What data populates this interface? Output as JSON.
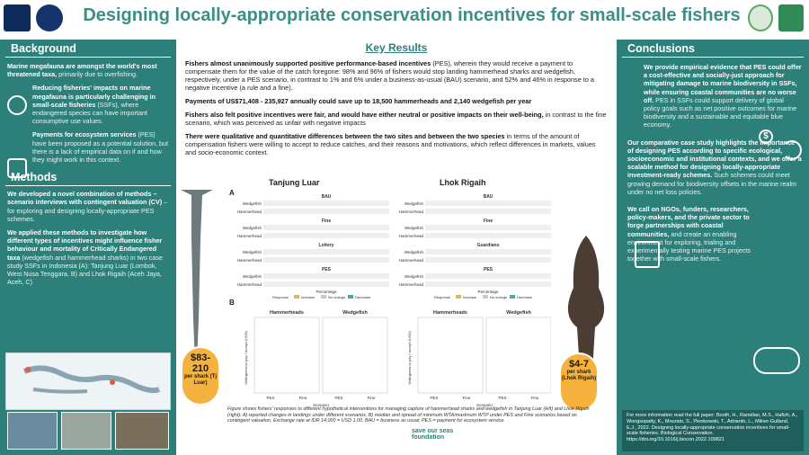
{
  "header": {
    "title": "Designing locally-appropriate conservation incentives for small-scale fishers",
    "logos": [
      "oxford-logo",
      "partner-seal-logo",
      "partner-emblem-logo",
      "university-logo"
    ]
  },
  "left": {
    "background_heading": "Background",
    "bg_p1_bold": "Marine megafauna are amongst the world's most threatened taxa,",
    "bg_p1_rest": " primarily due to overfishing.",
    "bg_p2_bold": "Reducing fisheries' impacts on marine megafauna is particularly challenging in small-scale fisheries",
    "bg_p2_rest": " (SSFs), where endangered species can have important consumptive use values.",
    "bg_p3_bold": "Payments for ecosystem services",
    "bg_p3_rest": " (PES) have been proposed as a potential solution, but there is a lack of empirical data on if and how they might work in this context.",
    "methods_heading": "Methods",
    "m_p1_bold": "We developed a novel combination of methods – scenario interviews with contingent valuation (CV)",
    "m_p1_rest": " – for exploring and designing locally-appropriate PES schemes.",
    "m_p2_bold": "We applied these methods to investigate how different types of incentives might influence fisher behaviour and mortality of Critically Endangered taxa",
    "m_p2_rest": " (wedgefish and hammerhead sharks) in two case study SSFs in Indonesia (A): Tanjung Luar (Lombok, West Nusa Tenggara, B) and Lhok Rigaih (Aceh Jaya, Aceh, C)"
  },
  "middle": {
    "heading": "Key Results",
    "k1_bold": "Fishers almost unanimously supported positive performance-based incentives",
    "k1_rest": " (PES), wherein they would receive a payment to compensate them for the value of the catch foregone: 98% and 96% of fishers would stop landing hammerhead sharks and wedgefish, respectively, under a PES scenario,  in contrast to 1% and 6% under  a business-as-usual (BAU) scenario, and 52% and 46% in response to a negative incentive (a rule and a fine).",
    "k2_bold": "Payments of US$71,408 - 235,927 annually could save up to 18,500 hammerheads and 2,140 wedgefish per year",
    "k3_bold": "Fishers also felt positive incentives were fair, and would have either neutral or positive impacts on their well-being,",
    "k3_rest": " in contrast to the fine scenario, which was perceived as unfair with negative impacts",
    "k4_bold": "There were qualitative and quantitative differences between the two sites and between the two species",
    "k4_rest": " in terms of the amount of compensation fishers were willing to accept to reduce catches, and their reasons and motivations, which reflect differences in markets, values and socio-economic context.",
    "badge_left_amount": "$83-210",
    "badge_left_sub": "per shark (Tj Luar)",
    "badge_right_amount": "$4-7",
    "badge_right_sub": "per shark (Lhok Rigaih)",
    "caption": "Figure shows fishers' responses to different hypothetical interventions for managing capture of hammerhead sharks and wedgefish in Tanjung Luar (left) and Lhok Rigaih (right): A) reported changes in landings under different scenarios, B) median and spread of minimum WTA/maximum WTP under PES and Fine scenarios based on contingent valuation. Exchange rate at IDR 14,000 = USD 1.00. BAU = business as usual; PES = payment for ecosystem service.",
    "sponsor": "save our seas foundation"
  },
  "figure": {
    "panel_a": "A",
    "panel_b": "B",
    "site_left": "Tanjung Luar",
    "site_right": "Lhok Rigaih",
    "left_scenarios": [
      "BAU",
      "Fine",
      "Lottery",
      "PES"
    ],
    "right_scenarios": [
      "BAU",
      "Fine",
      "Guardians",
      "PES"
    ],
    "species": [
      "Wedgefish",
      "Hammerhead"
    ],
    "percentage_label": "Percentage",
    "legend_title": "Response",
    "legend_items": [
      "Increase",
      "No change",
      "Decrease"
    ],
    "legend_colors": [
      "#d9b56a",
      "#c9c9c9",
      "#4aa9a2"
    ],
    "box_left_titles": [
      "Hammerheads",
      "Wedgefish"
    ],
    "box_right_titles": [
      "Hammerheads",
      "Wedgefish"
    ],
    "box_xlabel": "Scenario",
    "box_ylabel": "Willingness to pay / accept (USD)",
    "box_cats": [
      "PES",
      "Fine"
    ],
    "box_colors": [
      "#e8605a",
      "#26a9a7"
    ]
  },
  "right": {
    "conclusions_heading": "Conclusions",
    "c1_bold": "We provide empirical evidence that PES could offer a cost-effective and socially-just approach for mitigating damage to marine biodiversity in SSFs, while ensuring coastal communities are no worse off.",
    "c1_rest": " PES in SSFs could support delivery of global policy goals such as net positive outcomes for marine biodiversity and a sustainable and equitable blue economy.",
    "c2_bold": "Our comparative case study highlights the importance of designing PES according to specific ecological, socioeconomic and institutional contexts, and we offer a scalable method for designing locally-appropriate investment-ready schemes.",
    "c2_rest": " Such schemes could meet growing demand for biodiversity offsets in the marine realm under no net loss policies.",
    "c3_bold": "We call on NGOs, funders, researchers, policy-makers, and the private sector to forge partnerships with coastal communities,",
    "c3_rest": " and create an enabling environment for exploring, trialing and experimentally testing marine PES projects together with small-scale fishers.",
    "footer": "For more information read the full paper: Booth, H., Ramdlan, M.S., Hafizh, A., Wongsopatty, K., Mourato, S., Pienkowski, T., Adrianto, L., Milner-Gulland, E.J., 2022. Designing locally-appropriate conservation incentives for small-scale fisheries. Biological Conservation. https://doi.org/10.1016/j.biocon.2022.109821"
  }
}
